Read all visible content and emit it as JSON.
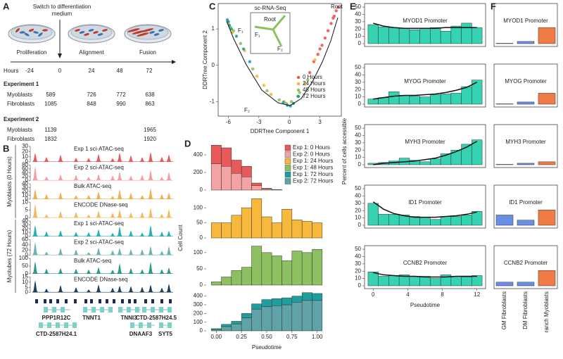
{
  "panel_labels": [
    "A",
    "B",
    "C",
    "D",
    "E",
    "F"
  ],
  "timeline": {
    "switch_label": [
      "Switch to differentiation",
      "medium"
    ],
    "stages": [
      "Proliferation",
      "Alignment",
      "Fusion"
    ],
    "hours_label": "Hours",
    "hours": [
      -24,
      0,
      24,
      48,
      72
    ]
  },
  "experiments": [
    {
      "title": "Experiment 1",
      "rows": [
        {
          "label": "Myoblasts",
          "counts": [
            589,
            726,
            772,
            638
          ]
        },
        {
          "label": "Fibroblasts",
          "counts": [
            1085,
            848,
            990,
            863
          ]
        }
      ]
    },
    {
      "title": "Experiment 2",
      "rows": [
        {
          "label": "Myoblasts",
          "counts": [
            1139,
            null,
            null,
            1965
          ]
        },
        {
          "label": "Fibroblasts",
          "counts": [
            1832,
            null,
            null,
            1920
          ]
        }
      ]
    }
  ],
  "tracks": {
    "groups": [
      "Myoblasts (0 Hours)",
      "Myotubes (72 Hours)"
    ],
    "items": [
      {
        "label": "Exp 1 sci-ATAC-seq",
        "color": "#e8595a",
        "ticks": [
          0,
          10,
          20,
          30
        ]
      },
      {
        "label": "Exp 2 sci-ATAC-seq",
        "color": "#f0a0a0",
        "ticks": [
          0,
          20,
          40,
          60,
          80
        ]
      },
      {
        "label": "Bulk ATAC-seq",
        "color": "#f0b050",
        "ticks": [
          0,
          10,
          20,
          30,
          40
        ]
      },
      {
        "label": "ENCODE DNase-seq",
        "color": "#f5b860",
        "ticks": [
          0,
          5,
          10
        ]
      },
      {
        "label": "Exp 1 sci-ATAC-seq",
        "color": "#2ab0b0",
        "ticks": [
          0,
          10,
          20,
          30,
          40
        ]
      },
      {
        "label": "Exp 2 sci-ATAC-seq",
        "color": "#70b0b5",
        "ticks": [
          0,
          20,
          40,
          60
        ]
      },
      {
        "label": "Bulk ATAC-seq",
        "color": "#2a9a8a",
        "ticks": [
          0,
          50,
          100
        ]
      },
      {
        "label": "ENCODE DNase-seq",
        "color": "#1e3f5a",
        "ticks": [
          0,
          5,
          10,
          15
        ]
      }
    ],
    "genes": [
      "PPP1R12C",
      "TNNT1",
      "TNNI3",
      "CTD-2587H24.5",
      "CTD-2587H24.1",
      "DNAAF3",
      "SYT5"
    ]
  },
  "chart_data": [
    {
      "type": "scatter",
      "xlabel": "DDRTree Component 1",
      "ylabel": "DDRTree Component 2",
      "xlim": [
        -7,
        5.1
      ],
      "ylim": [
        -1.4,
        1.7
      ],
      "xticks": [
        -6,
        -3,
        0,
        3
      ],
      "yticks": [
        -1,
        0,
        1
      ],
      "annotations": [
        "F₁",
        "F₂",
        "Root"
      ],
      "inset": {
        "title": "sc-RNA-Seq",
        "labels": [
          "Root",
          "F₁",
          "F₂"
        ]
      },
      "series": [
        {
          "name": "0 Hours",
          "color": "#e8595a",
          "x": [
            4.6,
            4.4,
            4.1,
            3.8,
            3.5,
            3.2,
            2.8,
            2.4,
            4.8,
            4.3,
            3.0,
            2.0
          ],
          "values": [
            1.5,
            1.35,
            1.15,
            0.95,
            0.75,
            0.55,
            0.3,
            0.1,
            1.6,
            1.3,
            0.45,
            -0.2
          ]
        },
        {
          "name": "24 Hours",
          "color": "#f6b93b",
          "x": [
            1.5,
            0.8,
            -0.5,
            -1.8,
            -3.2,
            -4.4,
            -5.6,
            -6.0,
            2.5,
            -2.5
          ],
          "values": [
            -0.5,
            -0.85,
            -1.0,
            -0.8,
            -0.3,
            0.4,
            0.9,
            1.15,
            0.15,
            -0.55
          ]
        },
        {
          "name": "48 Hours",
          "color": "#8dc060",
          "x": [
            1.0,
            0.2,
            -1.0,
            -2.2,
            -3.6,
            -4.8,
            -5.8,
            -5.5,
            1.8,
            -0.3
          ],
          "values": [
            -0.75,
            -1.0,
            -0.95,
            -0.7,
            -0.1,
            0.6,
            1.05,
            0.95,
            -0.4,
            -1.05
          ]
        },
        {
          "name": "72 Hours",
          "color": "#1da0a0",
          "x": [
            -6.1,
            -5.9,
            -5.7,
            -5.2,
            -4.5,
            -3.9,
            -0.2,
            0.1,
            0.4,
            -0.6,
            -6.0
          ],
          "values": [
            1.25,
            1.1,
            1.0,
            0.8,
            0.45,
            0.1,
            -1.1,
            -1.12,
            -1.05,
            -1.02,
            1.2
          ]
        }
      ]
    },
    {
      "type": "histogram",
      "ylabel": "Cell Count",
      "xlim": [
        -0.1,
        1.1
      ],
      "ylim": [
        0,
        520
      ],
      "yticks": [
        0,
        200,
        400
      ],
      "bins": [
        -0.05,
        0.05,
        0.15,
        0.25,
        0.35,
        0.45,
        0.55,
        0.65,
        0.75,
        0.85,
        0.95,
        1.05
      ],
      "series": [
        {
          "name": "Exp 1:  0 Hours",
          "color": "#e8595a",
          "values": [
            210,
            210,
            150,
            120,
            30,
            8,
            2,
            0,
            0,
            0,
            0
          ]
        },
        {
          "name": "Exp 2:  0 Hours",
          "color": "#f3a3a3",
          "values": [
            300,
            270,
            190,
            150,
            50,
            12,
            3,
            0,
            0,
            0,
            0
          ]
        }
      ]
    },
    {
      "type": "histogram",
      "xlim": [
        -0.1,
        1.1
      ],
      "ylim": [
        0,
        140
      ],
      "yticks": [
        0,
        50,
        100
      ],
      "bins": [
        -0.05,
        0.05,
        0.15,
        0.25,
        0.35,
        0.45,
        0.55,
        0.65,
        0.75,
        0.85,
        0.95,
        1.05
      ],
      "series": [
        {
          "name": "Exp 1: 24 Hours",
          "color": "#f6b93b",
          "values": [
            50,
            50,
            75,
            100,
            130,
            70,
            50,
            95,
            60,
            55,
            50
          ]
        }
      ]
    },
    {
      "type": "histogram",
      "xlim": [
        -0.1,
        1.1
      ],
      "ylim": [
        0,
        130
      ],
      "yticks": [
        0,
        50,
        100
      ],
      "bins": [
        -0.05,
        0.05,
        0.15,
        0.25,
        0.35,
        0.45,
        0.55,
        0.65,
        0.75,
        0.85,
        0.95,
        1.05
      ],
      "series": [
        {
          "name": "Exp 1: 48 Hours",
          "color": "#8dc060",
          "values": [
            10,
            25,
            45,
            55,
            120,
            100,
            90,
            75,
            105,
            100,
            110
          ]
        }
      ]
    },
    {
      "type": "histogram",
      "xlabel": "Pseudotime",
      "xlim": [
        -0.1,
        1.1
      ],
      "ylim": [
        0,
        470
      ],
      "yticks": [
        0,
        100,
        200,
        300,
        400
      ],
      "xticks": [
        {
          "value": 0,
          "label": "0.00"
        },
        0.25,
        {
          "value": 0.5,
          "label": "0.50"
        },
        0.75,
        {
          "value": 1,
          "label": "1.00"
        }
      ],
      "bins": [
        -0.05,
        0.05,
        0.15,
        0.25,
        0.35,
        0.45,
        0.55,
        0.65,
        0.75,
        0.85,
        0.95,
        1.05
      ],
      "series": [
        {
          "name": "Exp 1: 72 Hours",
          "color": "#1d9f9f",
          "values": [
            10,
            25,
            30,
            50,
            60,
            80,
            80,
            80,
            70,
            90,
            80
          ]
        },
        {
          "name": "Exp 2: 72 Hours",
          "color": "#5fa3a8",
          "values": [
            15,
            50,
            80,
            150,
            250,
            280,
            290,
            300,
            330,
            350,
            350
          ]
        }
      ]
    },
    {
      "type": "histogram",
      "title": "MYOD1 Promoter",
      "ylabel": "Percent of cells accessible",
      "color": "#35d3b2",
      "xlim": [
        -1,
        13
      ],
      "ylim": [
        0,
        52
      ],
      "yticks": [
        0,
        10,
        20,
        30,
        40,
        50
      ],
      "bins": [
        -0.6,
        0.6,
        1.8,
        3,
        4.2,
        5.4,
        6.6,
        7.8,
        9,
        10.2,
        11.4,
        12.6
      ],
      "values": [
        26,
        23,
        22,
        21,
        19,
        21,
        22,
        17,
        24,
        28,
        22
      ],
      "fit_values": [
        28,
        24,
        22,
        21,
        21,
        21,
        21,
        22,
        22,
        22,
        22
      ]
    },
    {
      "type": "histogram",
      "title": "MYOG Promoter",
      "color": "#35d3b2",
      "xlim": [
        -1,
        13
      ],
      "ylim": [
        0,
        52
      ],
      "yticks": [
        0,
        10,
        20,
        30,
        40,
        50
      ],
      "bins": [
        -0.6,
        0.6,
        1.8,
        3,
        4.2,
        5.4,
        6.6,
        7.8,
        9,
        10.2,
        11.4,
        12.6
      ],
      "values": [
        7,
        9,
        17,
        12,
        11,
        10,
        13,
        14,
        15,
        24,
        33
      ],
      "fit_values": [
        7,
        9,
        11,
        12,
        12,
        13,
        14,
        16,
        19,
        23,
        30
      ]
    },
    {
      "type": "histogram",
      "title": "MYH3 Promoter",
      "color": "#35d3b2",
      "xlim": [
        -1,
        13
      ],
      "ylim": [
        0,
        52
      ],
      "yticks": [
        0,
        10,
        20,
        30,
        40,
        50
      ],
      "bins": [
        -0.6,
        0.6,
        1.8,
        3,
        4.2,
        5.4,
        6.6,
        7.8,
        9,
        10.2,
        11.4,
        12.6
      ],
      "values": [
        2,
        3,
        5,
        9,
        6,
        4,
        8,
        15,
        20,
        28,
        34
      ],
      "fit_values": [
        0,
        2,
        3,
        4,
        5,
        7,
        9,
        13,
        18,
        24,
        32
      ]
    },
    {
      "type": "histogram",
      "title": "ID1 Promoter",
      "color": "#35d3b2",
      "xlim": [
        -1,
        13
      ],
      "ylim": [
        0,
        52
      ],
      "yticks": [
        0,
        10,
        20,
        30,
        40,
        50
      ],
      "bins": [
        -0.6,
        0.6,
        1.8,
        3,
        4.2,
        5.4,
        6.6,
        7.8,
        9,
        10.2,
        11.4,
        12.6
      ],
      "values": [
        30,
        15,
        15,
        14,
        12,
        11,
        8,
        12,
        12,
        14,
        19
      ],
      "fit_values": [
        32,
        22,
        16,
        13,
        11,
        11,
        11,
        12,
        13,
        15,
        18
      ]
    },
    {
      "type": "histogram",
      "title": "CCNB2 Promoter",
      "xlabel": "Pseudotime",
      "color": "#35d3b2",
      "xlim": [
        -1,
        13
      ],
      "ylim": [
        0,
        52
      ],
      "yticks": [
        0,
        10,
        20,
        30,
        40,
        50
      ],
      "xticks": [
        0,
        4,
        8,
        12
      ],
      "bins": [
        -0.6,
        0.6,
        1.8,
        3,
        4.2,
        5.4,
        6.6,
        7.8,
        9,
        10.2,
        11.4,
        12.6
      ],
      "values": [
        19,
        13,
        14,
        15,
        13,
        13,
        10,
        15,
        13,
        12,
        14
      ],
      "fit_values": [
        18,
        15,
        14,
        13,
        13,
        12,
        12,
        12,
        13,
        13,
        13
      ]
    },
    {
      "type": "bar",
      "title": "MYOD1 Promoter",
      "ylim": [
        0,
        52
      ],
      "colors": [
        "#6a8de8",
        "#6a8de8",
        "#f07b45"
      ],
      "values": [
        0.5,
        3,
        22
      ]
    },
    {
      "type": "bar",
      "title": "MYOG Promoter",
      "ylim": [
        0,
        52
      ],
      "colors": [
        "#6a8de8",
        "#6a8de8",
        "#f07b45"
      ],
      "values": [
        0.5,
        3,
        15
      ]
    },
    {
      "type": "bar",
      "title": "MYH3 Promoter",
      "ylim": [
        0,
        52
      ],
      "colors": [
        "#6a8de8",
        "#6a8de8",
        "#f07b45"
      ],
      "values": [
        0.5,
        2,
        4
      ]
    },
    {
      "type": "bar",
      "title": "ID1 Promoter",
      "ylim": [
        0,
        52
      ],
      "colors": [
        "#6a8de8",
        "#6a8de8",
        "#f07b45"
      ],
      "values": [
        14,
        7,
        21
      ]
    },
    {
      "type": "bar",
      "title": "CCNB2 Promoter",
      "ylim": [
        0,
        52
      ],
      "colors": [
        "#6a8de8",
        "#6a8de8",
        "#f07b45"
      ],
      "values": [
        5,
        5,
        21
      ],
      "categories": [
        "GM Fibroblasts",
        "DM Fibroblasts",
        "ranch Myoblasts"
      ]
    }
  ]
}
